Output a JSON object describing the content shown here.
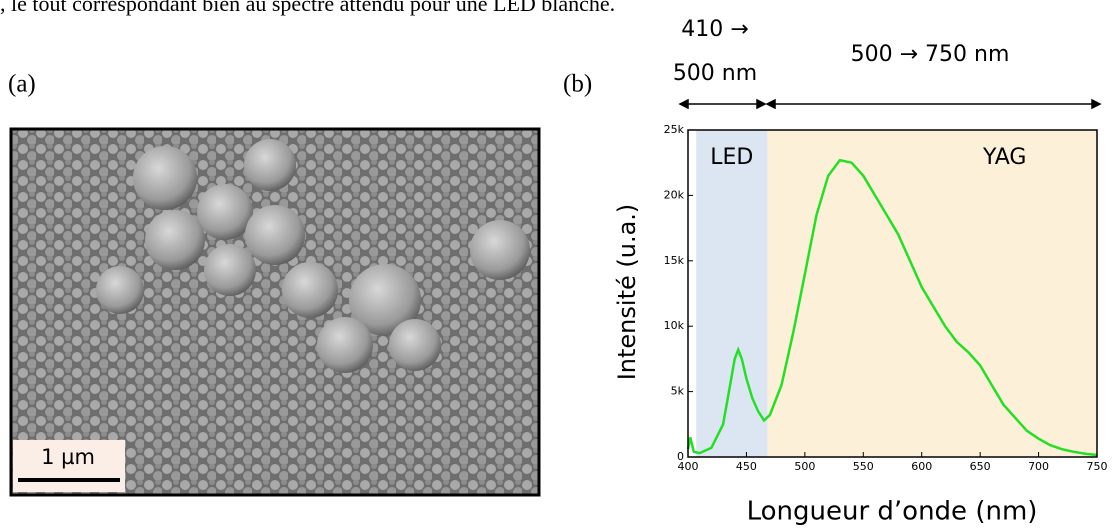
{
  "caption_fragment": ", le tout correspondant bien au spectre attendu pour une LED blanche.",
  "panel_a": {
    "label": "(a)",
    "scale_bar": "1 µm"
  },
  "panel_b": {
    "label": "(b)",
    "range_left": [
      "410 →",
      "500 nm"
    ],
    "range_right": "500 → 750 nm"
  },
  "chart_data": {
    "type": "line",
    "x_label": "Longueur d’onde (nm)",
    "y_label": "Intensité (u.a.)",
    "color": "#22e022",
    "x": [
      400,
      402,
      405,
      410,
      420,
      430,
      436,
      440,
      443,
      446,
      450,
      455,
      460,
      465,
      470,
      480,
      490,
      500,
      510,
      520,
      530,
      540,
      550,
      560,
      570,
      580,
      590,
      600,
      610,
      620,
      630,
      640,
      650,
      660,
      670,
      680,
      690,
      700,
      710,
      720,
      730,
      740,
      750
    ],
    "values": [
      600,
      1500,
      400,
      300,
      700,
      2500,
      5500,
      7500,
      8200,
      7500,
      6000,
      4500,
      3500,
      2800,
      3200,
      5500,
      9500,
      14000,
      18500,
      21500,
      22700,
      22500,
      21500,
      20000,
      18500,
      17000,
      15000,
      13000,
      11500,
      10000,
      8800,
      8000,
      7000,
      5500,
      4000,
      3000,
      2000,
      1400,
      900,
      600,
      400,
      250,
      150
    ],
    "xlim": [
      400,
      750
    ],
    "ylim": [
      0,
      25000
    ],
    "xticks": [
      400,
      450,
      500,
      550,
      600,
      650,
      700,
      750
    ],
    "yticks": [
      0,
      {
        "value": 5000,
        "label": "5k"
      },
      {
        "value": 10000,
        "label": "10k"
      },
      {
        "value": 15000,
        "label": "15k"
      },
      {
        "value": 20000,
        "label": "20k"
      },
      {
        "value": 25000,
        "label": "25k"
      }
    ],
    "regions": [
      {
        "name": "LED",
        "from": 407,
        "to": 468,
        "color": "#dce6f2"
      },
      {
        "name": "YAG",
        "from": 468,
        "to": 750,
        "color": "#fdf0d8"
      }
    ]
  }
}
